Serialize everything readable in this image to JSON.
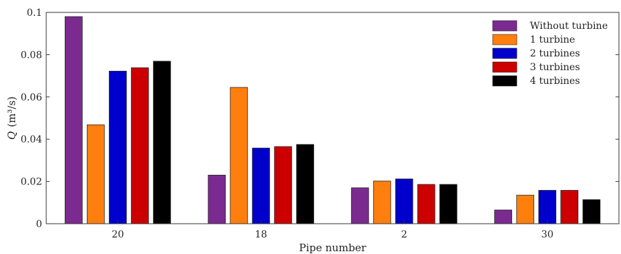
{
  "chart_data": {
    "type": "bar",
    "categories": [
      "20",
      "18",
      "2",
      "30"
    ],
    "series": [
      {
        "name": "Without turbine",
        "color": "#7b2b8f",
        "values": [
          0.098,
          0.023,
          0.017,
          0.0065
        ]
      },
      {
        "name": "1 turbine",
        "color": "#ff7f0e",
        "values": [
          0.0468,
          0.0645,
          0.0202,
          0.0135
        ]
      },
      {
        "name": "2 turbines",
        "color": "#0000cc",
        "values": [
          0.0722,
          0.0358,
          0.0212,
          0.0158
        ]
      },
      {
        "name": "3 turbines",
        "color": "#cc0000",
        "values": [
          0.0738,
          0.0365,
          0.0186,
          0.0158
        ]
      },
      {
        "name": "4 turbines",
        "color": "#000000",
        "values": [
          0.0769,
          0.0375,
          0.0186,
          0.0114
        ]
      }
    ],
    "xlabel": "Pipe number",
    "ylabel_symbol": "Q",
    "ylabel_unit": "(m³/s)",
    "ylim": [
      0,
      0.1
    ],
    "yticks": [
      "0",
      "0.02",
      "0.04",
      "0.06",
      "0.08",
      "0.1"
    ],
    "legend_position": "top-right",
    "grid": false
  }
}
